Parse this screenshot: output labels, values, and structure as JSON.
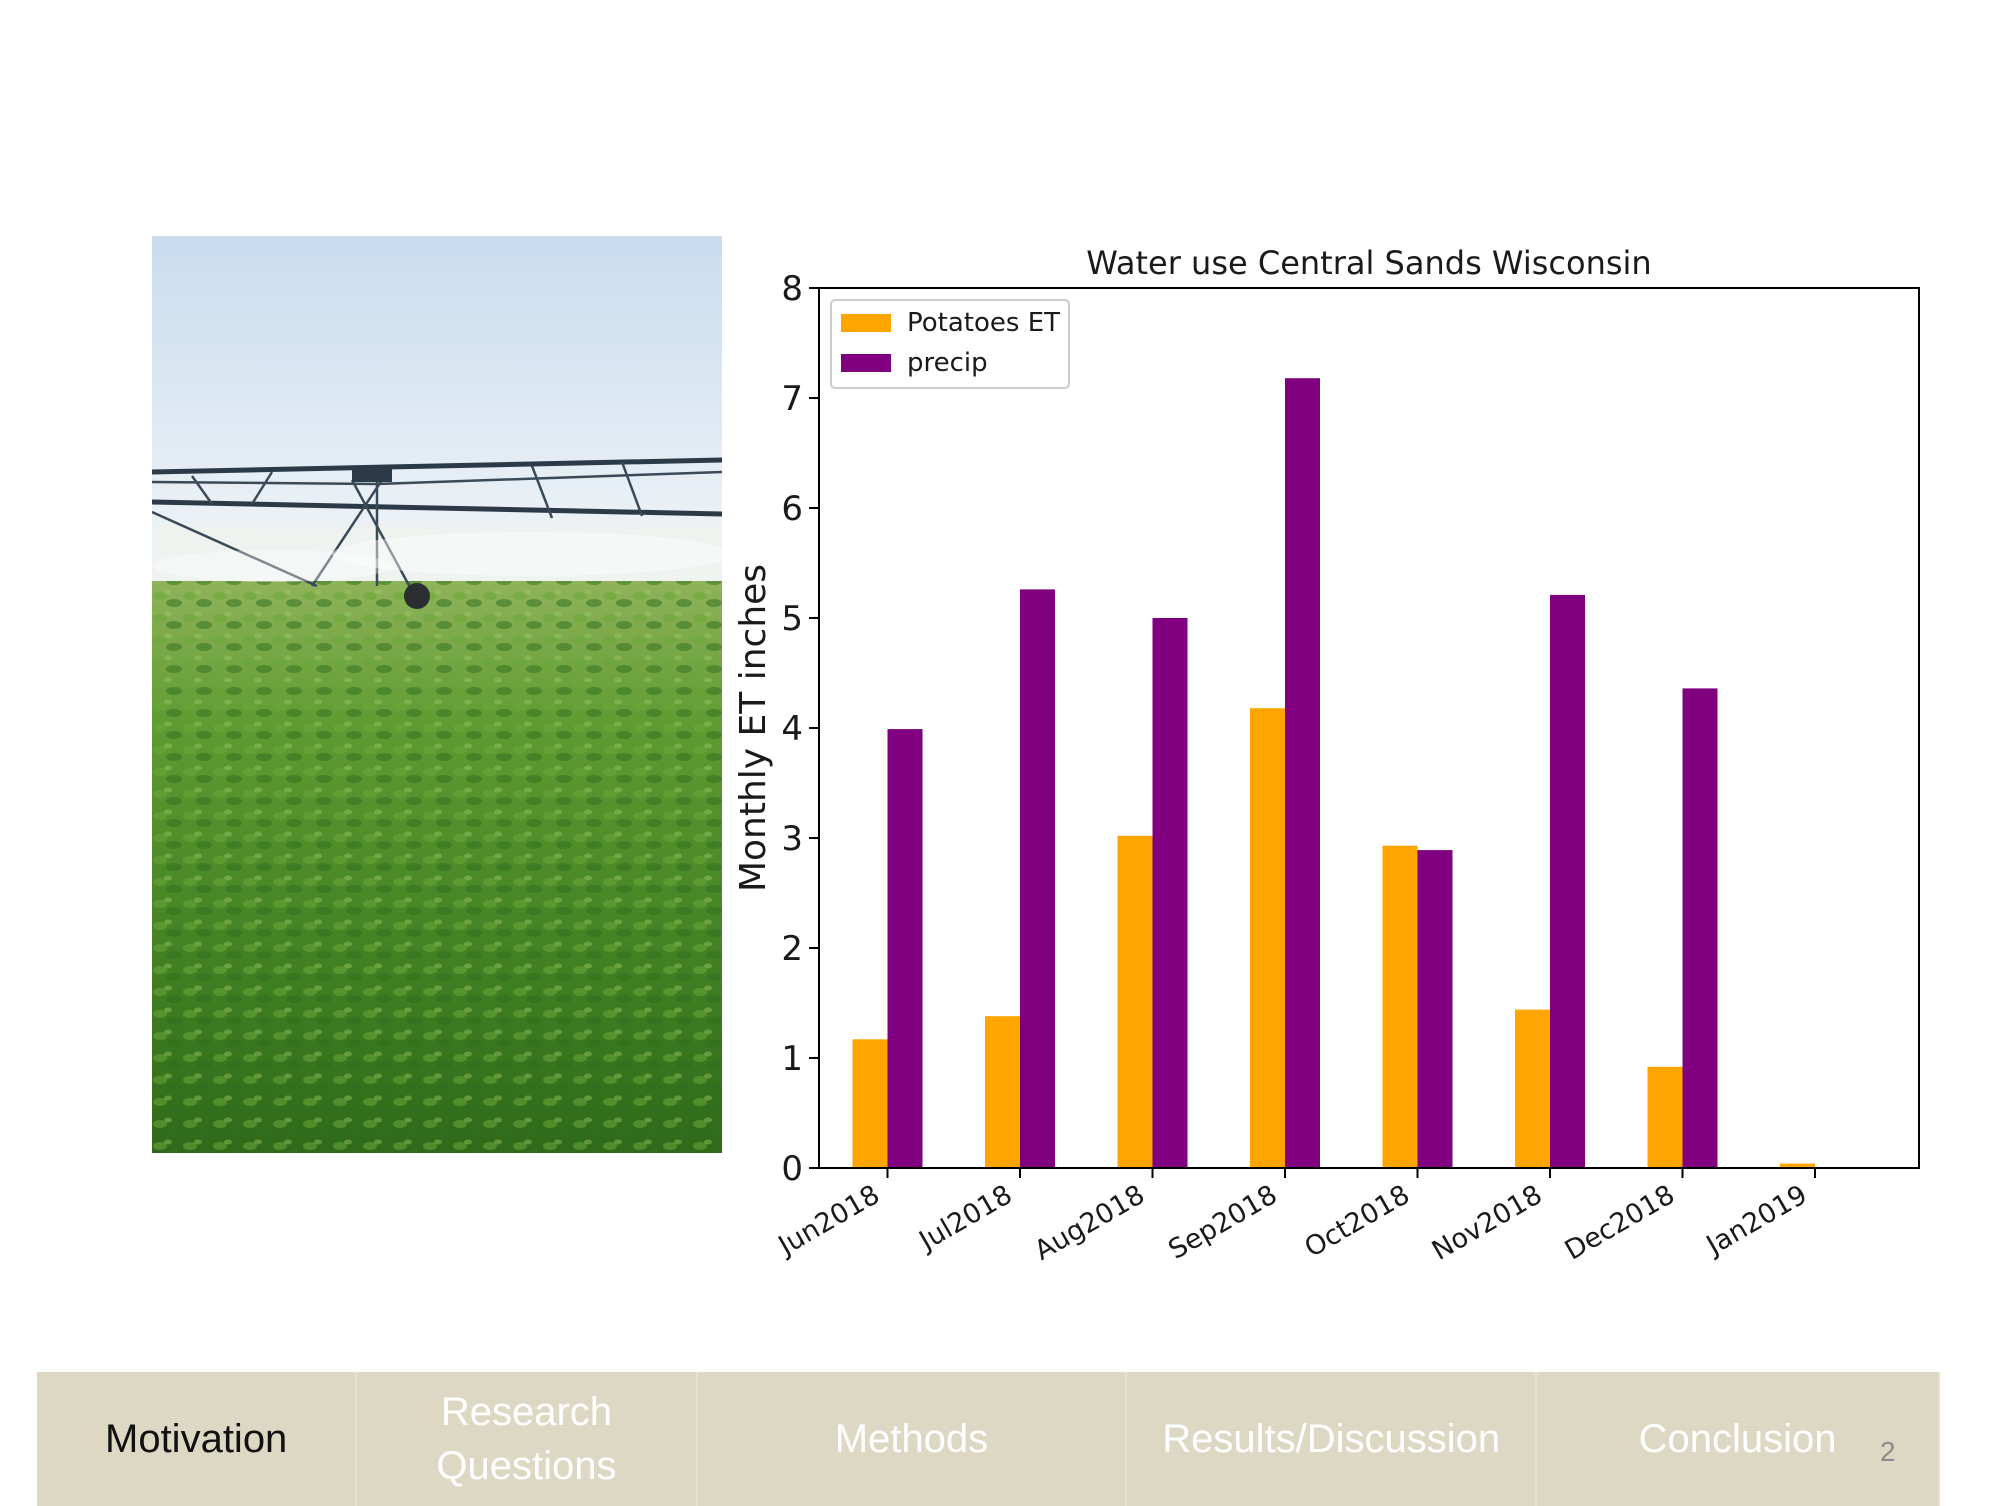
{
  "colors": {
    "potatoes_et": "#ffa500",
    "precip": "#800080",
    "nav_background": "#ddd8c3",
    "nav_active_text": "#111111",
    "nav_inactive_text": "#ffffff"
  },
  "photo": {
    "subject": "center-pivot irrigation over a green potato field"
  },
  "chart_data": {
    "type": "bar",
    "title": "Water use Central Sands Wisconsin",
    "xlabel": "",
    "ylabel": "Monthly ET inches",
    "ylim": [
      0,
      8
    ],
    "yticks": [
      "0",
      "1",
      "2",
      "3",
      "4",
      "5",
      "6",
      "7",
      "8"
    ],
    "categories": [
      "Jun2018",
      "Jul2018",
      "Aug2018",
      "Sep2018",
      "Oct2018",
      "Nov2018",
      "Dec2018",
      "Jan2019"
    ],
    "series": [
      {
        "name": "Potatoes ET",
        "color": "#ffa500",
        "values": [
          1.17,
          1.38,
          3.02,
          4.18,
          2.93,
          1.44,
          0.92,
          0.04
        ]
      },
      {
        "name": "precip",
        "color": "#800080",
        "values": [
          3.99,
          5.26,
          5.0,
          7.18,
          2.89,
          5.21,
          4.36,
          null
        ]
      }
    ],
    "legend": {
      "position": "top-left"
    },
    "grid": false
  },
  "nav": {
    "items": [
      {
        "label": "Motivation",
        "active": true
      },
      {
        "label": "Research\nQuestions",
        "active": false
      },
      {
        "label": "Methods",
        "active": false
      },
      {
        "label": "Results/Discussion",
        "active": false
      },
      {
        "label": "Conclusion",
        "active": false
      }
    ]
  },
  "page_number": "2"
}
